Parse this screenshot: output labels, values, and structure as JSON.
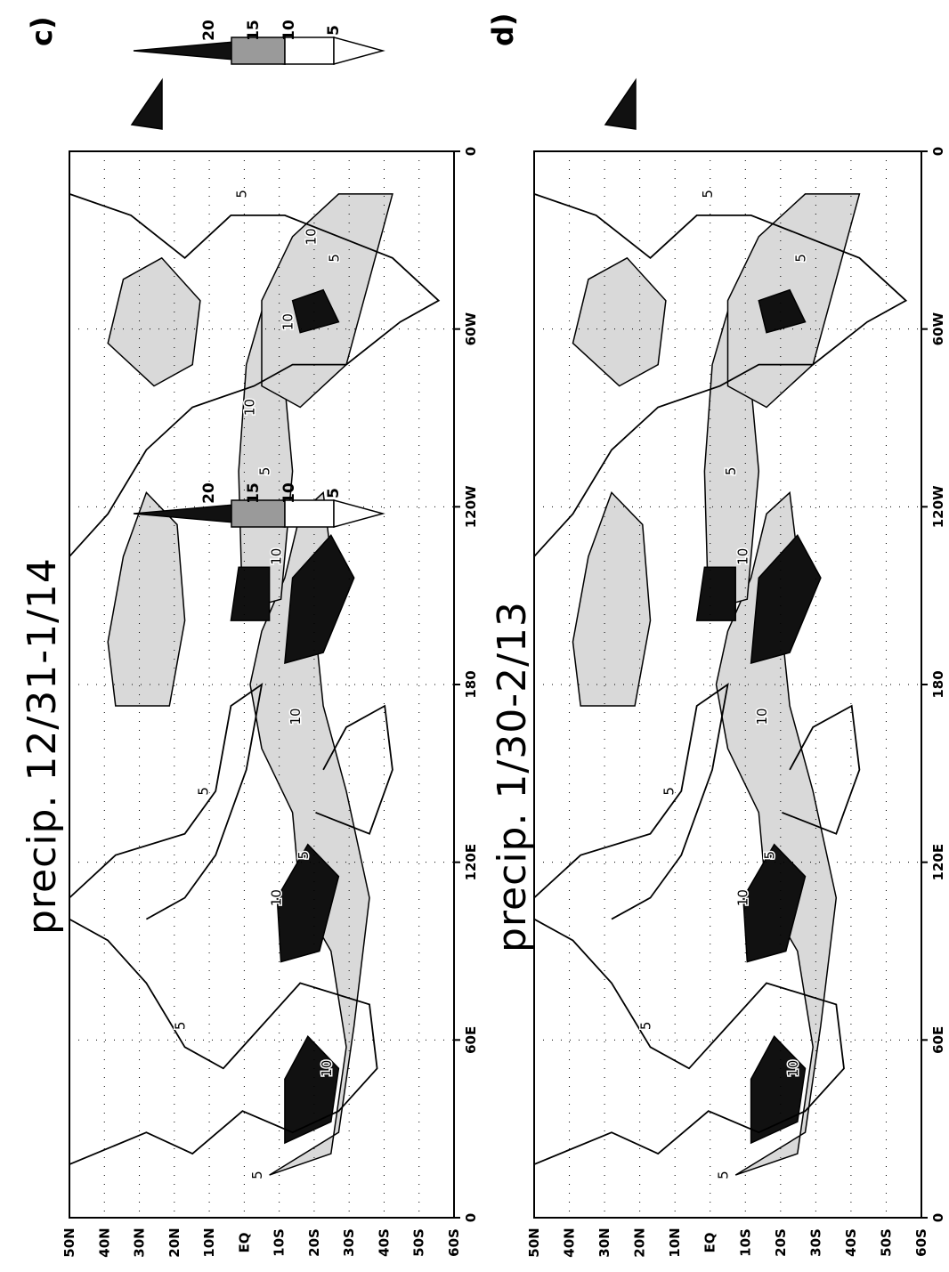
{
  "panels": [
    {
      "id": "c",
      "letter": "c)",
      "title": "precip. 12/31-1/14",
      "lat_labels": [
        "50N",
        "40N",
        "30N",
        "20N",
        "10N",
        "EQ",
        "10S",
        "20S",
        "30S",
        "40S",
        "50S",
        "60S"
      ],
      "lon_labels": [
        "0",
        "60E",
        "120E",
        "180",
        "120W",
        "60W",
        "0"
      ],
      "contour_labels": [
        "5",
        "5",
        "5",
        "5",
        "5",
        "5",
        "5",
        "10",
        "10",
        "10",
        "10",
        "10",
        "10",
        "10"
      ]
    },
    {
      "id": "d",
      "letter": "d)",
      "title": "precip. 1/30-2/13",
      "lat_labels": [
        "50N",
        "40N",
        "30N",
        "20N",
        "10N",
        "EQ",
        "10S",
        "20S",
        "30S",
        "40S",
        "50S",
        "60S"
      ],
      "lon_labels": [
        "0",
        "60E",
        "120E",
        "180",
        "120W",
        "60W",
        "0"
      ],
      "contour_labels": [
        "5",
        "5",
        "5",
        "5",
        "5",
        "5",
        "5",
        "10",
        "10",
        "10",
        "10"
      ]
    }
  ],
  "colorbar": {
    "labels": [
      "20",
      "15",
      "10",
      "5"
    ],
    "shades": [
      "#111111",
      "#9a9a9a",
      "#ffffff",
      "#ffffff"
    ]
  },
  "colors": {
    "light": "#d9d9d9",
    "heavy": "#111111",
    "land_line": "#000000"
  }
}
